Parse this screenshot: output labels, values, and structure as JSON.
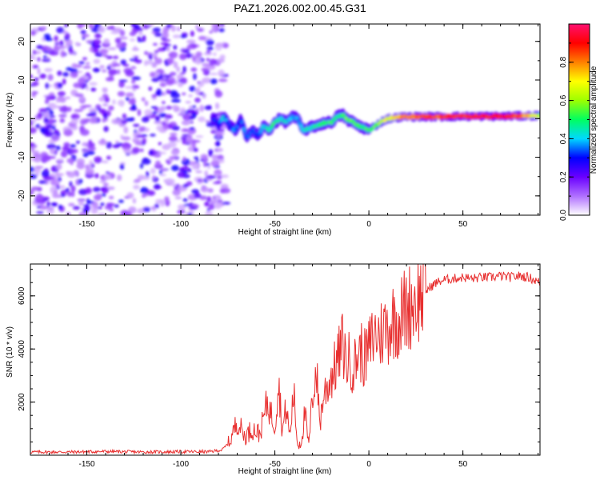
{
  "title": "PAZ1.2026.002.00.45.G31",
  "chart_data": [
    {
      "type": "heatmap",
      "title": "PAZ1.2026.002.00.45.G31",
      "xlabel": "Height of straight line (km)",
      "ylabel": "Frequency (Hz)",
      "xlim": [
        -180,
        91
      ],
      "ylim": [
        -25,
        24.5
      ],
      "xticks": [
        -150,
        -100,
        -50,
        0,
        50
      ],
      "yticks": [
        -20,
        -10,
        0,
        10,
        20
      ],
      "xtick_labels": [
        "-150",
        "-100",
        "-50",
        "0",
        "50"
      ],
      "ytick_labels": [
        "-20",
        "-10",
        "0",
        "10",
        "20"
      ],
      "noise_region_x": [
        -180,
        -80
      ],
      "ridge": {
        "x": [
          -83,
          -80,
          -77,
          -74,
          -71,
          -68,
          -65,
          -62,
          -59,
          -56,
          -53,
          -50,
          -47,
          -44,
          -41,
          -38,
          -35,
          -32,
          -29,
          -26,
          -23,
          -20,
          -17,
          -14,
          -11,
          -8,
          -5,
          -2,
          0,
          3,
          6,
          10,
          15,
          20,
          30,
          40,
          50,
          60,
          70,
          80,
          91
        ],
        "y": [
          0,
          -1.5,
          0.5,
          -2,
          -3,
          0,
          -5,
          -3,
          -4.5,
          -2,
          -3,
          -1,
          0,
          -1,
          0.5,
          0,
          -3,
          -2.5,
          -2,
          -1.5,
          -1,
          -1,
          0.5,
          1,
          -0.5,
          -1,
          -2,
          -2.5,
          -3,
          -2,
          -1,
          0,
          0.3,
          0.5,
          0.5,
          0.5,
          0.6,
          0.6,
          0.6,
          0.7,
          0.8
        ],
        "intensity": [
          0.3,
          0.3,
          0.4,
          0.3,
          0.35,
          0.3,
          0.35,
          0.3,
          0.3,
          0.4,
          0.45,
          0.5,
          0.45,
          0.4,
          0.4,
          0.35,
          0.4,
          0.45,
          0.45,
          0.5,
          0.5,
          0.5,
          0.45,
          0.5,
          0.55,
          0.55,
          0.5,
          0.5,
          0.5,
          0.55,
          0.6,
          0.7,
          0.75,
          0.8,
          0.85,
          0.85,
          0.9,
          0.9,
          0.9,
          0.85,
          0.6
        ]
      },
      "colorbar": {
        "label": "Normalized spectral amplitude",
        "range": [
          0,
          1
        ],
        "ticks": [
          0.0,
          0.2,
          0.4,
          0.6,
          0.8
        ],
        "tick_labels": [
          "0.0",
          "0.2",
          "0.4",
          "0.6",
          "0.8"
        ],
        "colors": [
          "#ffffff",
          "#b070ff",
          "#6a00ff",
          "#0000ff",
          "#00d8ff",
          "#00ff60",
          "#9cff00",
          "#ffff00",
          "#ff8000",
          "#ff0000",
          "#ff1070"
        ]
      }
    },
    {
      "type": "line",
      "xlabel": "Height of straight line (km)",
      "ylabel": "SNR (10 * v/v)",
      "xlim": [
        -180,
        91
      ],
      "ylim": [
        0,
        7200
      ],
      "xticks": [
        -150,
        -100,
        -50,
        0,
        50
      ],
      "yticks": [
        2000,
        4000,
        6000
      ],
      "xtick_labels": [
        "-150",
        "-100",
        "-50",
        "0",
        "50"
      ],
      "ytick_labels": [
        "2000",
        "4000",
        "6000"
      ],
      "color": "#e83030",
      "x": [
        -180,
        -160,
        -140,
        -120,
        -100,
        -85,
        -78,
        -74,
        -72,
        -70,
        -66,
        -62,
        -58,
        -54,
        -50,
        -48,
        -46,
        -44,
        -42,
        -40,
        -38,
        -36,
        -34,
        -32,
        -30,
        -28,
        -26,
        -24,
        -22,
        -20,
        -18,
        -16,
        -14,
        -12,
        -10,
        -8,
        -6,
        -4,
        -2,
        0,
        2,
        4,
        6,
        8,
        10,
        12,
        14,
        16,
        18,
        20,
        24,
        28,
        32,
        36,
        40,
        45,
        50,
        55,
        60,
        65,
        70,
        75,
        80,
        85,
        88,
        91
      ],
      "y": [
        120,
        120,
        140,
        120,
        130,
        130,
        200,
        500,
        900,
        1300,
        700,
        1000,
        800,
        2000,
        1100,
        2800,
        900,
        1800,
        700,
        2400,
        400,
        500,
        1600,
        300,
        2200,
        3300,
        1200,
        2300,
        2600,
        3000,
        3300,
        3700,
        4200,
        3500,
        3600,
        3300,
        3800,
        3900,
        3600,
        4000,
        4400,
        4600,
        4500,
        4800,
        4800,
        5000,
        5200,
        5100,
        5400,
        5500,
        5800,
        6000,
        6300,
        6500,
        6600,
        6650,
        6700,
        6650,
        6700,
        6700,
        6750,
        6700,
        6750,
        6700,
        6600,
        6500
      ]
    }
  ]
}
